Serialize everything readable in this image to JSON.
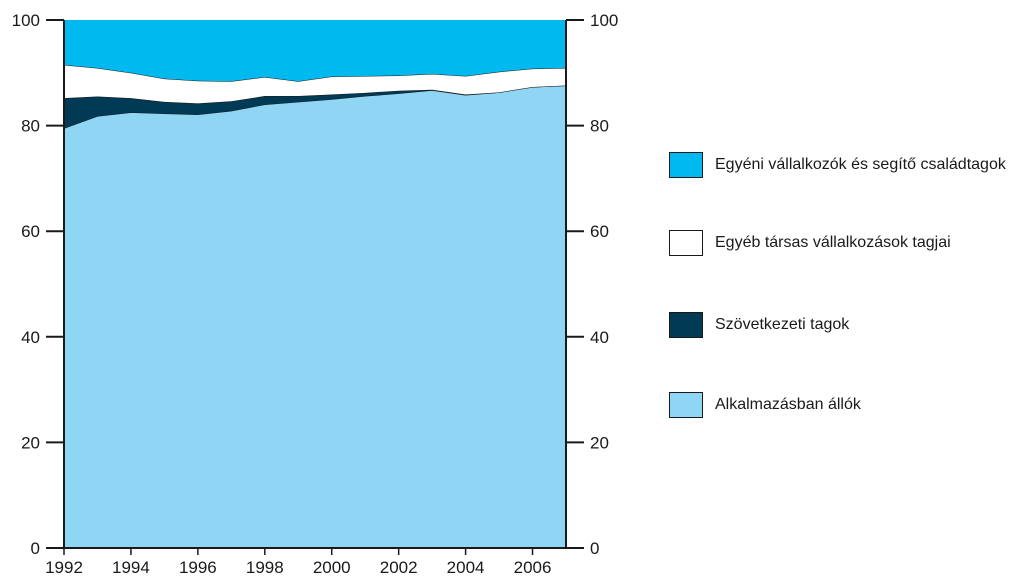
{
  "chart_data": {
    "type": "area",
    "stacked": true,
    "x": [
      1992,
      1993,
      1994,
      1995,
      1996,
      1997,
      1998,
      1999,
      2000,
      2001,
      2002,
      2003,
      2004,
      2005,
      2006,
      2007
    ],
    "x_ticks": [
      "1992",
      "1994",
      "1996",
      "1998",
      "2000",
      "2002",
      "2004",
      "2006"
    ],
    "y_ticks": [
      "0",
      "20",
      "40",
      "60",
      "80",
      "100"
    ],
    "ylim": [
      0,
      100
    ],
    "right_axis_mirror": true,
    "grid": false,
    "legend_position": "right",
    "title": "",
    "xlabel": "",
    "ylabel": "",
    "series": [
      {
        "name": "Alkalmazásban állók",
        "color": "#8fd6f5",
        "values": [
          79.5,
          81.8,
          82.5,
          82.3,
          82.1,
          82.8,
          84.0,
          84.5,
          85.0,
          85.6,
          86.1,
          86.7,
          85.8,
          86.3,
          87.3,
          87.6
        ]
      },
      {
        "name": "Szövetkezeti tagok",
        "color": "#003a55",
        "values": [
          5.7,
          3.7,
          2.7,
          2.2,
          2.1,
          1.8,
          1.6,
          1.1,
          0.9,
          0.6,
          0.5,
          0.1,
          0.1,
          0.0,
          0.0,
          0.0
        ]
      },
      {
        "name": "Egyéb társas vállalkozások tagjai",
        "color": "#ffffff",
        "values": [
          6.3,
          5.4,
          4.8,
          4.4,
          4.3,
          3.8,
          3.6,
          2.8,
          3.4,
          3.2,
          2.9,
          3.0,
          3.5,
          3.9,
          3.5,
          3.3
        ]
      },
      {
        "name": "Egyéni vállalkozók és segítő családtagok",
        "color": "#00b9ef",
        "values": [
          8.5,
          9.1,
          10.0,
          11.1,
          11.5,
          11.6,
          10.8,
          11.6,
          10.7,
          10.6,
          10.5,
          10.2,
          10.6,
          9.8,
          9.2,
          9.1
        ]
      }
    ]
  }
}
